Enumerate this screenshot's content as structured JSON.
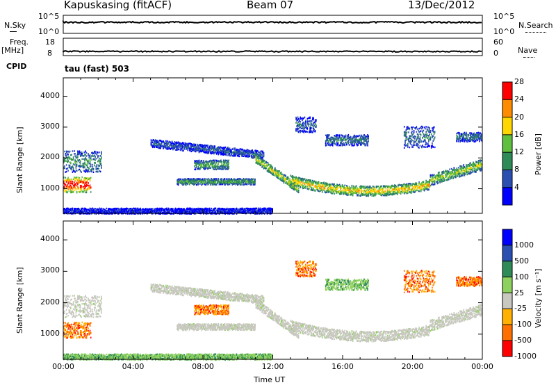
{
  "header": {
    "station": "Kapuskasing (fitACF)",
    "beam": "Beam 07",
    "date": "13/Dec/2012"
  },
  "nsky_panel": {
    "left_label": "N.Sky",
    "right_label": "N.Search",
    "left_ticks": [
      "10^5",
      "10^0"
    ],
    "right_ticks": [
      "10^5",
      "10^0"
    ]
  },
  "freq_panel": {
    "left_label": "Freq.",
    "left_unit": "[MHz]",
    "right_label": "Nave",
    "left_ticks": [
      "18",
      "8"
    ],
    "right_ticks": [
      "60",
      "0"
    ],
    "cpid_label": "CPID",
    "cpid_text": "tau (fast) 503"
  },
  "chart_data": [
    {
      "type": "heatmap",
      "name": "power",
      "ylabel": "Slant Range [km]",
      "xlabel": "",
      "yticks": [
        1000,
        2000,
        3000,
        4000
      ],
      "ylim": [
        200,
        4600
      ],
      "xlim": [
        0,
        24
      ],
      "colorbar_label": "Power [dB]",
      "colorbar_ticks": [
        "4",
        "8",
        "12",
        "16",
        "20",
        "24",
        "28"
      ],
      "colorbar_colors": [
        "#0000ff",
        "#2b4fb0",
        "#2e8b57",
        "#5fbf3f",
        "#ffd700",
        "#ff8c00",
        "#ff0000"
      ]
    },
    {
      "type": "heatmap",
      "name": "velocity",
      "ylabel": "Slant Range [km]",
      "xlabel": "Time UT",
      "yticks": [
        1000,
        2000,
        3000,
        4000
      ],
      "ylim": [
        200,
        4600
      ],
      "xlim": [
        0,
        24
      ],
      "xticks": [
        "00:00",
        "04:00",
        "08:00",
        "12:00",
        "16:00",
        "20:00",
        "00:00"
      ],
      "colorbar_label": "Velocity [m s⁻¹]",
      "colorbar_ticks": [
        "1000",
        "500",
        "100",
        "25",
        "-25",
        "-100",
        "-500",
        "-1000"
      ],
      "colorbar_colors": [
        "#0000ff",
        "#2b4fb0",
        "#2e8b57",
        "#8fd15f",
        "#c8c8c0",
        "#ffb000",
        "#ff7000",
        "#ff0000"
      ]
    }
  ]
}
